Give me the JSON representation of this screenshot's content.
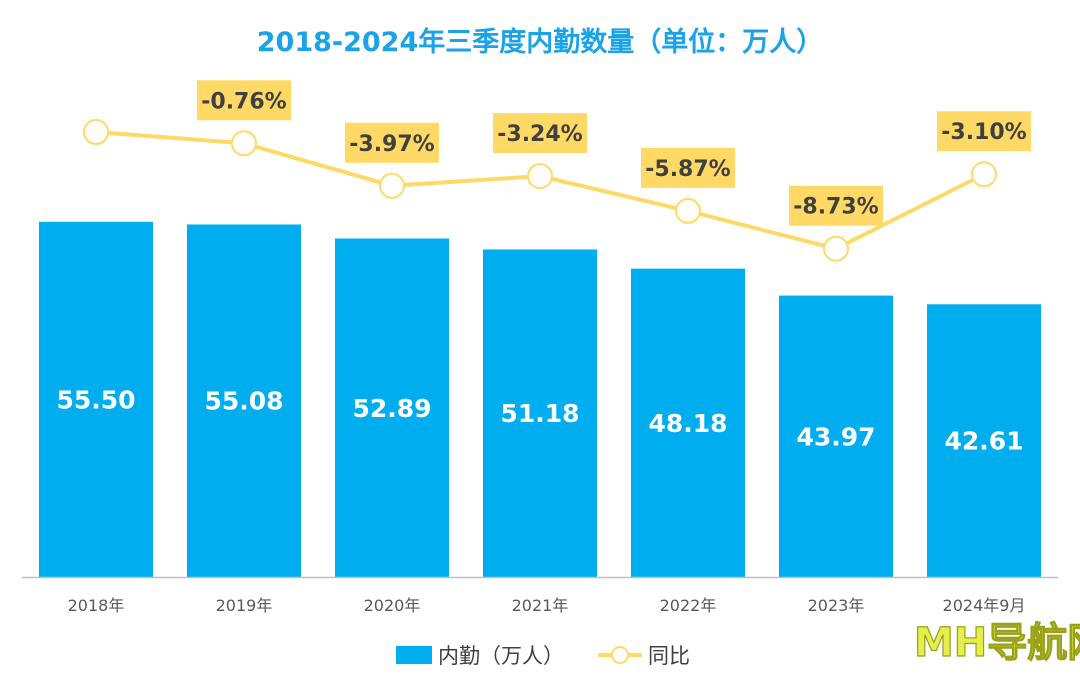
{
  "chart_data": {
    "type": "bar",
    "title": "2018-2024年三季度内勤数量（单位：万人）",
    "categories": [
      "2018年",
      "2019年",
      "2020年",
      "2021年",
      "2022年",
      "2023年",
      "2024年9月"
    ],
    "series": [
      {
        "name": "内勤（万人）",
        "type": "bar",
        "values": [
          55.5,
          55.08,
          52.89,
          51.18,
          48.18,
          43.97,
          42.61
        ],
        "labels": [
          "55.50",
          "55.08",
          "52.89",
          "51.18",
          "48.18",
          "43.97",
          "42.61"
        ]
      },
      {
        "name": "同比",
        "type": "line",
        "values": [
          null,
          -0.76,
          -3.97,
          -3.24,
          -5.87,
          -8.73,
          -3.1
        ],
        "labels": [
          "",
          "-0.76%",
          "-3.97%",
          "-3.24%",
          "-5.87%",
          "-8.73%",
          "-3.10%"
        ]
      }
    ],
    "ylim": [
      0,
      60
    ],
    "y2lim": [
      -12,
      1
    ],
    "legend_position": "bottom-center"
  },
  "watermark": "MH导航网",
  "colors": {
    "title": "#1aa3e8",
    "bar": "#00aeef",
    "line": "#ffd966",
    "label_bg": "#ffd966",
    "axis": "#bfbfbf"
  }
}
